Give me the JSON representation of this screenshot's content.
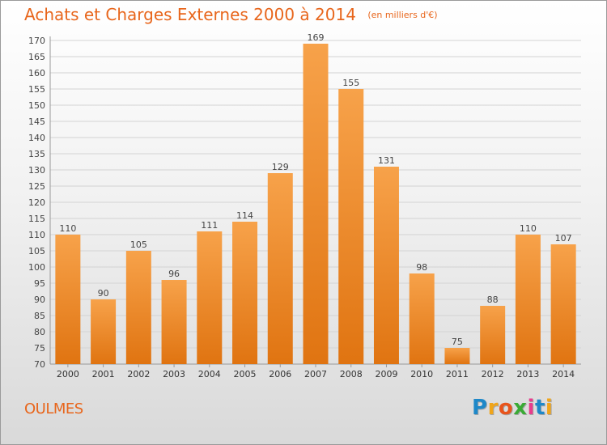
{
  "header": {
    "title": "Achats et Charges Externes 2000 à 2014",
    "unit": "(en milliers d'€)"
  },
  "footer": {
    "location": "OULMES",
    "logo_letters": [
      "P",
      "r",
      "o",
      "x",
      "i",
      "t",
      "i"
    ],
    "logo_colors": [
      "#1e88c8",
      "#f0a51a",
      "#e8541c",
      "#3aaa35",
      "#e83c8c",
      "#1e88c8",
      "#f0a51a"
    ]
  },
  "colors": {
    "bar_top": "#f7a24a",
    "bar_bottom": "#e07411",
    "grid": "#d3d3d3",
    "accent": "#e8661c"
  },
  "chart_data": {
    "type": "bar",
    "categories": [
      "2000",
      "2001",
      "2002",
      "2003",
      "2004",
      "2005",
      "2006",
      "2007",
      "2008",
      "2009",
      "2010",
      "2011",
      "2012",
      "2013",
      "2014"
    ],
    "values": [
      110,
      90,
      105,
      96,
      111,
      114,
      129,
      169,
      155,
      131,
      98,
      75,
      88,
      110,
      107
    ],
    "title": "Achats et Charges Externes 2000 à 2014",
    "ylim": [
      70,
      170
    ],
    "ytick_step": 5,
    "grid": true
  }
}
